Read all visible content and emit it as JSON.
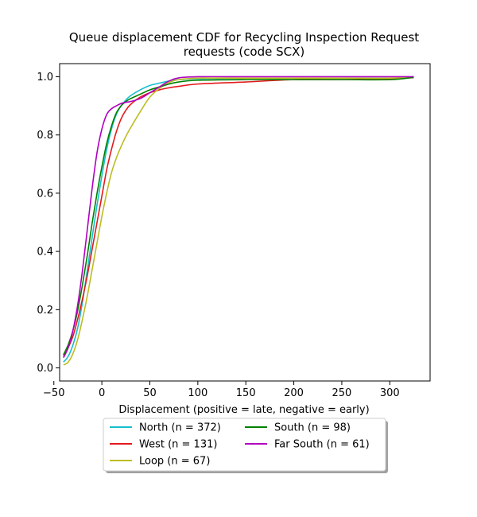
{
  "chart_data": {
    "type": "line",
    "title_line1": "Queue displacement CDF for Recycling Inspection Request",
    "title_line2": "requests (code SCX)",
    "xlabel": "Displacement (positive = late, negative = early)",
    "ylabel": "",
    "xlim": [
      -44,
      342
    ],
    "ylim": [
      -0.045,
      1.045
    ],
    "xticks": [
      -50,
      0,
      50,
      100,
      150,
      200,
      250,
      300
    ],
    "yticks": [
      0.0,
      0.2,
      0.4,
      0.6,
      0.8,
      1.0
    ],
    "xtick_labels": [
      "−50",
      "0",
      "50",
      "100",
      "150",
      "200",
      "250",
      "300"
    ],
    "ytick_labels": [
      "0.0",
      "0.2",
      "0.4",
      "0.6",
      "0.8",
      "1.0"
    ],
    "grid": false,
    "legend_position": "below plot, center",
    "series": [
      {
        "name": "North (n = 372)",
        "color": "#17becf",
        "x": [
          -40,
          -35,
          -30,
          -25,
          -20,
          -15,
          -10,
          -5,
          0,
          5,
          10,
          15,
          20,
          25,
          30,
          40,
          50,
          60,
          70,
          80,
          100,
          150,
          200,
          250,
          300,
          325
        ],
        "y": [
          0.02,
          0.04,
          0.08,
          0.14,
          0.23,
          0.34,
          0.45,
          0.56,
          0.66,
          0.75,
          0.82,
          0.87,
          0.9,
          0.92,
          0.935,
          0.955,
          0.97,
          0.978,
          0.985,
          0.99,
          0.993,
          0.995,
          0.995,
          0.995,
          0.995,
          0.998
        ]
      },
      {
        "name": "West (n = 131)",
        "color": "#e41a1c",
        "x": [
          -40,
          -35,
          -30,
          -25,
          -20,
          -15,
          -10,
          -5,
          0,
          5,
          10,
          15,
          20,
          25,
          30,
          40,
          50,
          60,
          70,
          80,
          100,
          150,
          200,
          250,
          300,
          325
        ],
        "y": [
          0.04,
          0.07,
          0.11,
          0.17,
          0.24,
          0.32,
          0.41,
          0.5,
          0.59,
          0.68,
          0.75,
          0.81,
          0.855,
          0.885,
          0.905,
          0.93,
          0.945,
          0.955,
          0.962,
          0.967,
          0.975,
          0.982,
          0.99,
          0.99,
          0.993,
          0.997
        ]
      },
      {
        "name": "Loop (n = 67)",
        "color": "#bcbd22",
        "x": [
          -40,
          -35,
          -30,
          -25,
          -20,
          -15,
          -10,
          -5,
          0,
          5,
          10,
          15,
          20,
          25,
          30,
          40,
          50,
          60,
          70,
          80,
          100,
          150,
          200,
          250,
          300,
          325
        ],
        "y": [
          0.01,
          0.02,
          0.05,
          0.1,
          0.17,
          0.25,
          0.34,
          0.43,
          0.52,
          0.6,
          0.67,
          0.72,
          0.76,
          0.795,
          0.825,
          0.88,
          0.93,
          0.96,
          0.98,
          0.99,
          0.995,
          0.995,
          0.995,
          0.995,
          0.995,
          1.0
        ]
      },
      {
        "name": "South (n = 98)",
        "color": "#008000",
        "x": [
          -40,
          -35,
          -30,
          -25,
          -20,
          -15,
          -10,
          -5,
          0,
          5,
          10,
          15,
          20,
          25,
          30,
          40,
          50,
          60,
          70,
          80,
          100,
          150,
          200,
          250,
          300,
          325
        ],
        "y": [
          0.045,
          0.08,
          0.13,
          0.2,
          0.29,
          0.39,
          0.5,
          0.6,
          0.69,
          0.77,
          0.83,
          0.875,
          0.9,
          0.915,
          0.925,
          0.94,
          0.955,
          0.965,
          0.975,
          0.982,
          0.988,
          0.99,
          0.99,
          0.99,
          0.99,
          0.998
        ]
      },
      {
        "name": "Far South (n = 61)",
        "color": "#b000c0",
        "x": [
          -40,
          -35,
          -30,
          -25,
          -20,
          -15,
          -10,
          -5,
          0,
          5,
          10,
          15,
          20,
          25,
          30,
          40,
          50,
          60,
          70,
          80,
          100,
          150,
          200,
          250,
          300,
          325
        ],
        "y": [
          0.035,
          0.07,
          0.13,
          0.22,
          0.34,
          0.48,
          0.62,
          0.74,
          0.82,
          0.87,
          0.89,
          0.9,
          0.908,
          0.912,
          0.915,
          0.925,
          0.945,
          0.965,
          0.985,
          0.996,
          1.0,
          1.0,
          1.0,
          1.0,
          1.0,
          1.0
        ]
      }
    ],
    "legend_columns": [
      [
        "North (n = 372)",
        "West (n = 131)",
        "Loop (n = 67)"
      ],
      [
        "South (n = 98)",
        "Far South (n = 61)"
      ]
    ]
  }
}
